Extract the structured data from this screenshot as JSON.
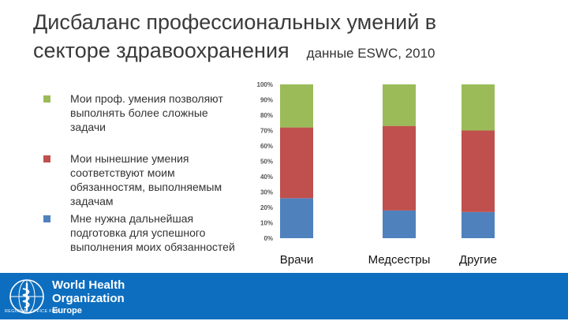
{
  "title": {
    "main_line1": "Дисбаланс профессиональных умений в",
    "main_line2": "секторе здравоохранения",
    "source": "данные ESWC, 2010"
  },
  "legend": [
    {
      "label": "Мои проф. умения позволяют выполнять более сложные задачи",
      "color": "#9bbb59"
    },
    {
      "label": "Мои нынешние умения соответствуют моим обязанностям, выполняемым задачам",
      "color": "#c0504d"
    },
    {
      "label": "Мне нужна дальнейшая подготовка для успешного выполнения моих обязанностей",
      "color": "#4f81bd"
    }
  ],
  "chart_data": {
    "type": "bar",
    "stacked": true,
    "categories": [
      "Врачи",
      "Медсестры",
      "Другие"
    ],
    "series": [
      {
        "name": "Мне нужна дальнейшая подготовка для успешного выполнения моих обязанностей",
        "color": "#4f81bd",
        "values": [
          26,
          18,
          17
        ]
      },
      {
        "name": "Мои нынешние умения соответствуют моим обязанностям, выполняемым задачам",
        "color": "#c0504d",
        "values": [
          46,
          55,
          53
        ]
      },
      {
        "name": "Мои проф. умения позволяют выполнять более сложные задачи",
        "color": "#9bbb59",
        "values": [
          28,
          27,
          30
        ]
      }
    ],
    "ylim": [
      0,
      100
    ],
    "yticks": [
      "0%",
      "10%",
      "20%",
      "30%",
      "40%",
      "50%",
      "60%",
      "70%",
      "80%",
      "90%",
      "100%"
    ],
    "grid": false,
    "legend_position": "left"
  },
  "footer": {
    "org_line1": "World Health",
    "org_line2": "Organization",
    "region_small": "REGIONAL OFFICE FOR",
    "region_name": "Europe",
    "bg_color": "#0d6ebf"
  }
}
